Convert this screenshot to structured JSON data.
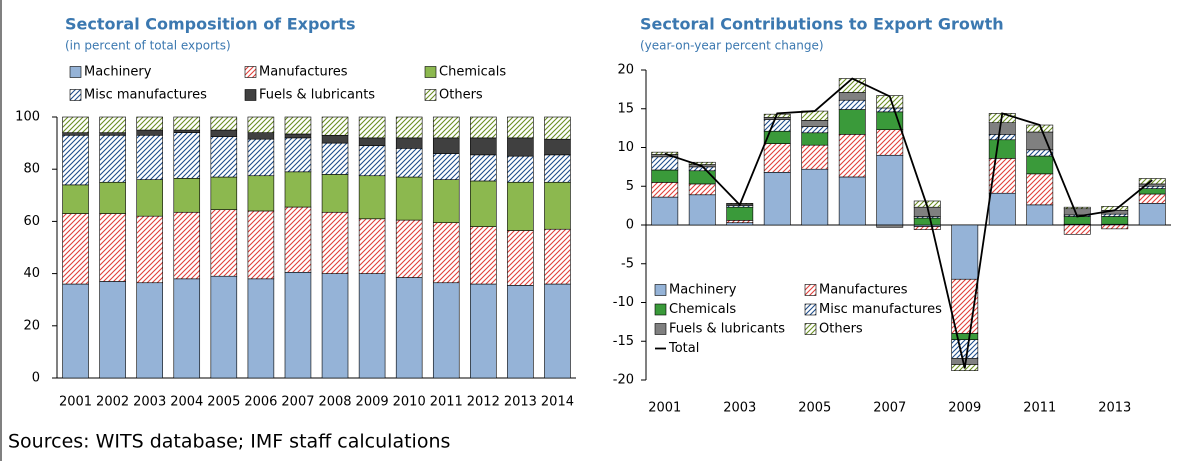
{
  "chart_data": [
    {
      "type": "stacked-bar",
      "title": "Sectoral Composition of Exports",
      "subtitle": "(in percent of total exports)",
      "categories": [
        "2001",
        "2002",
        "2003",
        "2004",
        "2005",
        "2006",
        "2007",
        "2008",
        "2009",
        "2010",
        "2011",
        "2012",
        "2013",
        "2014"
      ],
      "series": [
        {
          "name": "Machinery",
          "color": "#95b3d7",
          "pattern": "solid",
          "values": [
            36,
            37,
            36.5,
            38,
            39,
            38,
            40.5,
            40,
            40,
            38.5,
            36.5,
            36,
            35.5,
            36
          ]
        },
        {
          "name": "Manufactures",
          "color": "#e0403a",
          "pattern": "hatch",
          "values": [
            27,
            26,
            25.5,
            25.5,
            25.5,
            26,
            25,
            23.5,
            21,
            22,
            23,
            22,
            21,
            21
          ]
        },
        {
          "name": "Chemicals",
          "color": "#8cb84f",
          "pattern": "solid",
          "values": [
            11,
            12,
            14,
            13,
            12.5,
            13.5,
            13.5,
            14.5,
            16.5,
            16.5,
            16.5,
            17.5,
            18.5,
            18
          ]
        },
        {
          "name": "Misc manufactures",
          "color": "#1f4e8c",
          "pattern": "hatch",
          "values": [
            19,
            18,
            17,
            17.5,
            15.5,
            14,
            13,
            12,
            11.5,
            11,
            10,
            10,
            10,
            10.5
          ]
        },
        {
          "name": "Fuels & lubricants",
          "color": "#404040",
          "pattern": "solid",
          "values": [
            1,
            1,
            2,
            1,
            2.5,
            2.5,
            1.5,
            3,
            3,
            4,
            6,
            6.5,
            7,
            6
          ]
        },
        {
          "name": "Others",
          "color": "#6b8e23",
          "pattern": "hatch",
          "values": [
            6,
            6,
            5,
            5,
            5,
            6,
            6.5,
            7,
            8,
            8,
            8,
            8,
            8,
            8.5
          ]
        }
      ],
      "ylim": [
        0,
        100
      ],
      "yticks": [
        0,
        20,
        40,
        60,
        80,
        100
      ],
      "legend": "top"
    },
    {
      "type": "stacked-bar",
      "title": "Sectoral Contributions to Export Growth",
      "subtitle": "(year-on-year percent change)",
      "categories": [
        "2001",
        null,
        "2003",
        null,
        "2005",
        null,
        "2007",
        null,
        "2009",
        null,
        "2011",
        null,
        "2013",
        null
      ],
      "series": [
        {
          "name": "Machinery",
          "color": "#95b3d7",
          "pattern": "solid",
          "values": [
            3.6,
            3.9,
            0.3,
            6.8,
            7.2,
            6.2,
            9.0,
            -0.2,
            -7.0,
            4.1,
            2.6,
            0.1,
            0.1,
            2.8
          ]
        },
        {
          "name": "Manufactures",
          "color": "#e0403a",
          "pattern": "hatch",
          "values": [
            1.9,
            1.4,
            0.3,
            3.7,
            3.1,
            5.5,
            3.3,
            -0.4,
            -7.0,
            4.5,
            4.0,
            -1.2,
            -0.5,
            1.2
          ]
        },
        {
          "name": "Chemicals",
          "color": "#3a9a3a",
          "pattern": "solid",
          "values": [
            1.6,
            1.7,
            1.7,
            1.6,
            1.6,
            3.2,
            2.3,
            0.9,
            -0.8,
            2.4,
            2.3,
            1.0,
            1.0,
            0.7
          ]
        },
        {
          "name": "Misc manufactures",
          "color": "#1f4e8c",
          "pattern": "hatch",
          "values": [
            1.7,
            0.5,
            0.2,
            1.5,
            0.8,
            1.2,
            0.5,
            0.2,
            -2.4,
            0.7,
            0.8,
            0.2,
            0.3,
            0.3
          ]
        },
        {
          "name": "Fuels & lubricants",
          "color": "#808080",
          "pattern": "solid",
          "values": [
            0.3,
            0.3,
            0.2,
            0.3,
            0.8,
            1.0,
            -0.3,
            1.2,
            -0.8,
            1.5,
            2.3,
            0.8,
            0.5,
            0.3
          ]
        },
        {
          "name": "Others",
          "color": "#6b8e23",
          "pattern": "hatch",
          "values": [
            0.3,
            0.3,
            0.1,
            0.4,
            1.2,
            1.8,
            1.6,
            0.8,
            -0.8,
            1.2,
            0.9,
            0.2,
            0.5,
            0.7
          ]
        },
        {
          "name": "Total",
          "color": "#000000",
          "type": "line",
          "values": [
            9.2,
            7.6,
            2.6,
            14.4,
            14.7,
            18.9,
            16.6,
            2.4,
            -18.5,
            14.4,
            12.9,
            1.1,
            1.9,
            5.8
          ]
        }
      ],
      "ylim": [
        -20,
        20
      ],
      "yticks": [
        -20,
        -15,
        -10,
        -5,
        0,
        5,
        10,
        15,
        20
      ],
      "legend": "lower left"
    }
  ],
  "source": "Sources: WITS database; IMF staff calculations"
}
